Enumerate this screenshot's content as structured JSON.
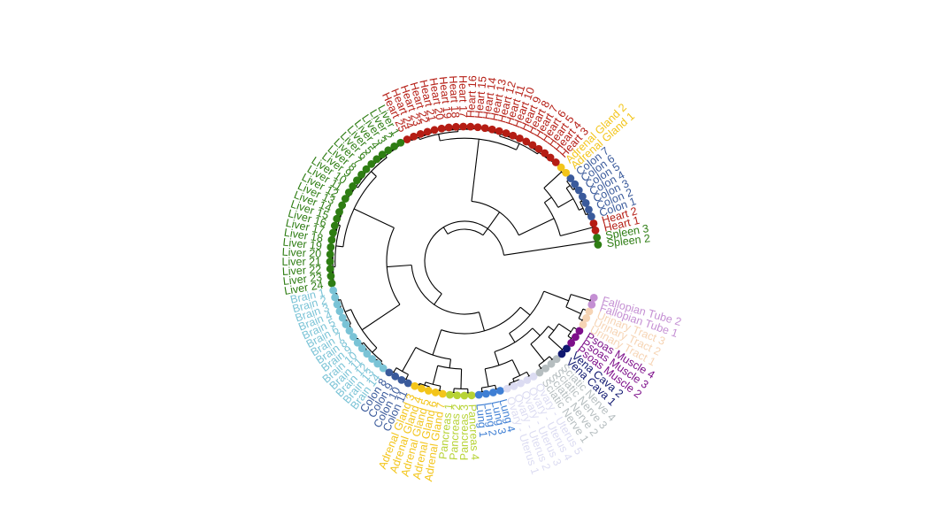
{
  "leaf_groups": [
    {
      "names": [
        "Spleen 2",
        "Spleen 3"
      ],
      "color": "#2e7d13"
    },
    {
      "names": [
        "Heart 1",
        "Heart 2"
      ],
      "color": "#b51d14"
    },
    {
      "names": [
        "Colon 1",
        "Colon 2",
        "Colon 3",
        "Colon 4",
        "Colon 5",
        "Colon 6",
        "Colon 7"
      ],
      "color": "#3a5a9b"
    },
    {
      "names": [
        "Adrenal Gland 1",
        "Adrenal Gland 2"
      ],
      "color": "#f3c51a"
    },
    {
      "names": [
        "Heart 3",
        "Heart 4",
        "Heart 5",
        "Heart 6",
        "Heart 7",
        "Heart 8",
        "Heart 9",
        "Heart 10",
        "Heart 11",
        "Heart 12",
        "Heart 13",
        "Heart 14",
        "Heart 15",
        "Heart 16",
        "Heart 17",
        "Heart 18",
        "Heart 19",
        "Heart 20",
        "Heart 21",
        "Heart 22",
        "Heart 23",
        "Heart 24",
        "Heart 25"
      ],
      "color": "#b51d14"
    },
    {
      "names": [
        "Liver 1",
        "Liver 2",
        "Liver 3",
        "Liver 4",
        "Liver 5",
        "Liver 6",
        "Liver 7",
        "Liver 8",
        "Liver 9",
        "Liver 10",
        "Liver 11",
        "Liver 12",
        "Liver 13",
        "Liver 14",
        "Liver 15",
        "Liver 16",
        "Liver 17",
        "Liver 18",
        "Liver 19",
        "Liver 20",
        "Liver 21",
        "Liver 22",
        "Liver 23",
        "Liver 24"
      ],
      "color": "#2e7d13"
    },
    {
      "names": [
        "Brain 1",
        "Brain 2",
        "Brain 3",
        "Brain 4",
        "Brain 5",
        "Brain 6",
        "Brain 7",
        "Brain 8",
        "Brain 9",
        "Brain 10",
        "Brain 11",
        "Brain 12",
        "Brain 13",
        "Brain 14"
      ],
      "color": "#7ac3d6"
    },
    {
      "names": [
        "Colon 8",
        "Colon 9",
        "Colon 10",
        "Colon 11"
      ],
      "color": "#3a5a9b"
    },
    {
      "names": [
        "Adrenal Gland 3",
        "Adrenal Gland 4",
        "Adrenal Gland 5",
        "Adrenal Gland 6",
        "Adrenal Gland 7"
      ],
      "color": "#f3c51a"
    },
    {
      "names": [
        "Pancreas 1",
        "Pancreas 2",
        "Pancreas 3",
        "Pancreas 4"
      ],
      "color": "#b7d334"
    },
    {
      "names": [
        "Lung 1",
        "Lung 2",
        "Lung 3",
        "Lung 4"
      ],
      "color": "#3f7fd4"
    },
    {
      "names": [
        "Ovary - Uterus 1",
        "Ovary - Uterus 2",
        "Ovary - Uterus 3",
        "Ovary - Uterus 4",
        "Ovary - Uterus 5"
      ],
      "color": "#dcdcf2"
    },
    {
      "names": [
        "Sciatic Nerve 1",
        "Sciatic Nerve 2",
        "Sciatic Nerve 3",
        "Sciatic Nerve 4"
      ],
      "color": "#b6bec0"
    },
    {
      "names": [
        "Vena Cava 1",
        "Vena Cava 2"
      ],
      "color": "#101870"
    },
    {
      "names": [
        "Psoas Muscle 2",
        "Psoas Muscle 3",
        "Psoas Muscle 4"
      ],
      "color": "#7d0f8a"
    },
    {
      "names": [
        "Urinary Tract 1",
        "Urinary Tract 2",
        "Urinary Tract 3"
      ],
      "color": "#f6d4b4"
    },
    {
      "names": [
        "Fallopian Tube 1",
        "Fallopian Tube 2"
      ],
      "color": "#c48fd3"
    }
  ]
}
